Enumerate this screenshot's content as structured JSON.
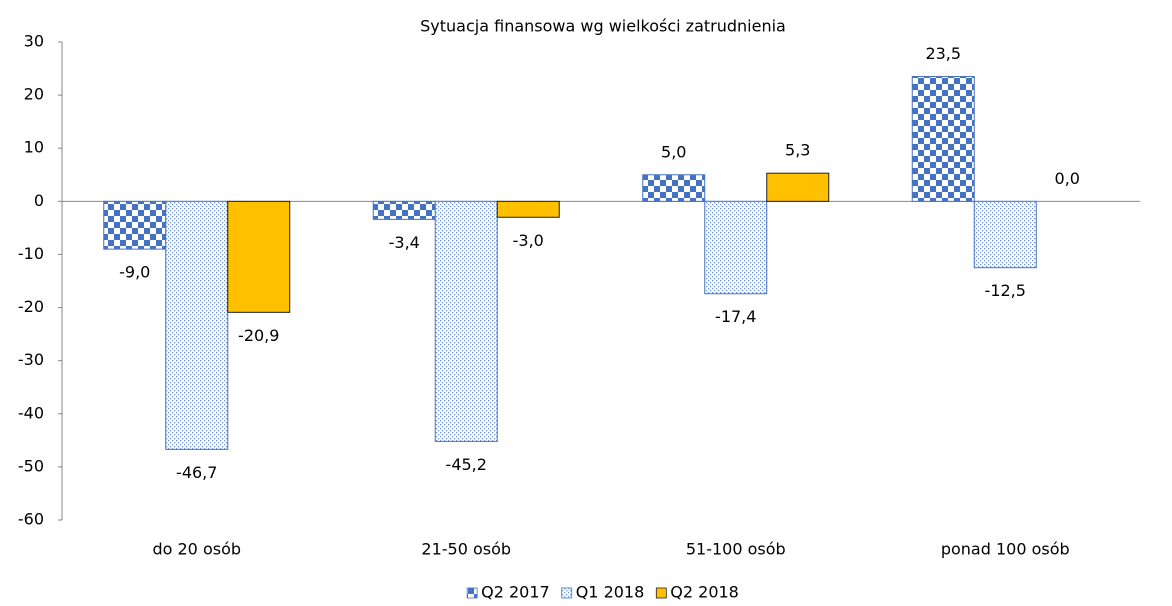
{
  "chart_data": {
    "type": "bar",
    "title": "Sytuacja finansowa wg wielkości zatrudnienia",
    "categories": [
      "do 20 osób",
      "21-50 osób",
      "51-100 osób",
      "ponad 100 osób"
    ],
    "series": [
      {
        "name": "Q2 2017",
        "color": "#4472c4",
        "pattern": "checker",
        "values": [
          -9.0,
          -3.4,
          5.0,
          23.5
        ],
        "value_labels": [
          "-9,0",
          "-3,4",
          "5,0",
          "23,5"
        ]
      },
      {
        "name": "Q1 2018",
        "color": "#4472c4",
        "pattern": "dots",
        "values": [
          -46.7,
          -45.2,
          -17.4,
          -12.5
        ],
        "value_labels": [
          "-46,7",
          "-45,2",
          "-17,4",
          "-12,5"
        ]
      },
      {
        "name": "Q2 2018",
        "color": "#ffc000",
        "pattern": "solid",
        "values": [
          -20.9,
          -3.0,
          5.3,
          0.0
        ],
        "value_labels": [
          "-20,9",
          "-3,0",
          "5,3",
          "0,0"
        ]
      }
    ],
    "ylim": [
      -60,
      30
    ],
    "yticks": [
      -60,
      -50,
      -40,
      -30,
      -20,
      -10,
      0,
      10,
      20,
      30
    ],
    "grid": false,
    "legend": "bottom"
  }
}
